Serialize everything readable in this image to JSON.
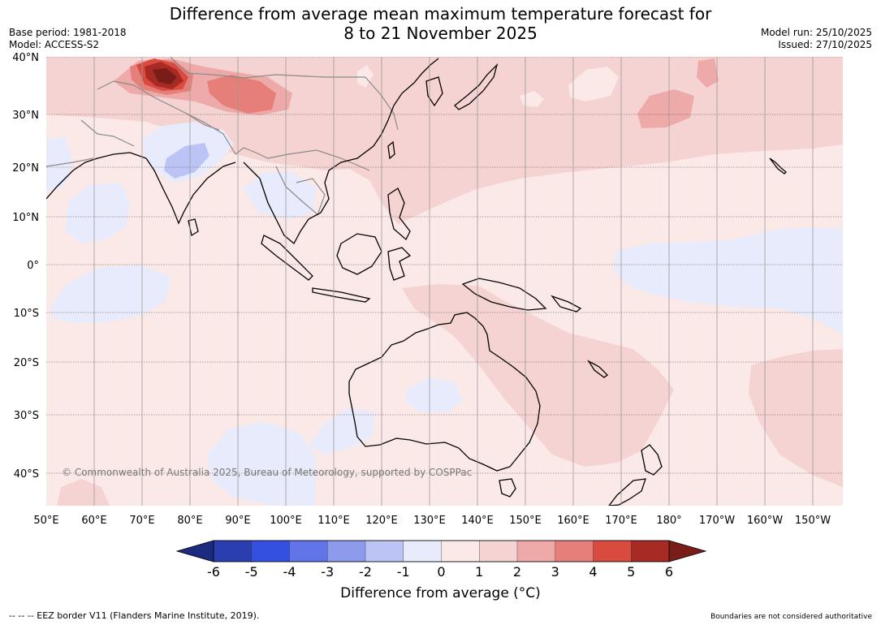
{
  "title": {
    "line1": "Difference from average mean maximum temperature forecast for",
    "line2": "8 to 21 November 2025"
  },
  "meta": {
    "base_period": "Base period: 1981-2018",
    "model": "Model: ACCESS-S2",
    "model_run": "Model run: 25/10/2025",
    "issued": "Issued: 27/10/2025"
  },
  "map": {
    "lat_labels": [
      "40°N",
      "30°N",
      "20°N",
      "10°N",
      "0°",
      "10°S",
      "20°S",
      "30°S",
      "40°S"
    ],
    "lon_labels": [
      "50°E",
      "60°E",
      "70°E",
      "80°E",
      "90°E",
      "100°E",
      "110°E",
      "120°E",
      "130°E",
      "140°E",
      "150°E",
      "160°E",
      "170°E",
      "180°",
      "170°W",
      "160°W",
      "150°W"
    ],
    "copyright": "© Commonwealth of Australia 2025, Bureau of Meteorology, supported by COSPPac"
  },
  "colorbar": {
    "colors": [
      "#2a3eb0",
      "#3350e0",
      "#6275e8",
      "#8d9bec",
      "#bcc4f5",
      "#e8ebfb",
      "#fbe9e8",
      "#f5d3d2",
      "#eeaaa8",
      "#e67f7a",
      "#d94a3f",
      "#a82a24"
    ],
    "low_extend_color": "#1c2a80",
    "high_extend_color": "#7a1d18",
    "ticks": [
      "-6",
      "-5",
      "-4",
      "-3",
      "-2",
      "-1",
      "0",
      "1",
      "2",
      "3",
      "4",
      "5",
      "6"
    ],
    "title": "Difference from average (°C)"
  },
  "footer": {
    "eez_note": "--  --  -- EEZ border V11 (Flanders Marine Institute, 2019).",
    "boundaries_note": "Boundaries are not considered authoritative"
  }
}
